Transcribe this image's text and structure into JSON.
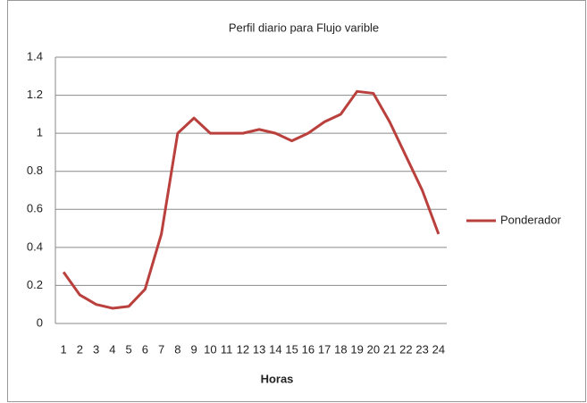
{
  "chart_data": {
    "type": "line",
    "title": "Perfil diario para Flujo varible",
    "x_label": "Horas",
    "categories": [
      "1",
      "2",
      "3",
      "4",
      "5",
      "6",
      "7",
      "8",
      "9",
      "10",
      "11",
      "12",
      "13",
      "14",
      "15",
      "16",
      "17",
      "18",
      "19",
      "20",
      "21",
      "22",
      "23",
      "24"
    ],
    "series": [
      {
        "name": "Ponderador",
        "color": "#b9403c",
        "values": [
          0.27,
          0.15,
          0.1,
          0.08,
          0.09,
          0.18,
          0.47,
          1.0,
          1.08,
          1.0,
          1.0,
          1.0,
          1.02,
          1.0,
          0.96,
          1.0,
          1.06,
          1.1,
          1.22,
          1.21,
          1.06,
          0.88,
          0.7,
          0.47
        ]
      }
    ],
    "ylim": [
      0,
      1.4
    ],
    "yticks": [
      0,
      0.2,
      0.4,
      0.6,
      0.8,
      1,
      1.2,
      1.4
    ],
    "grid": true,
    "legend": "right"
  }
}
